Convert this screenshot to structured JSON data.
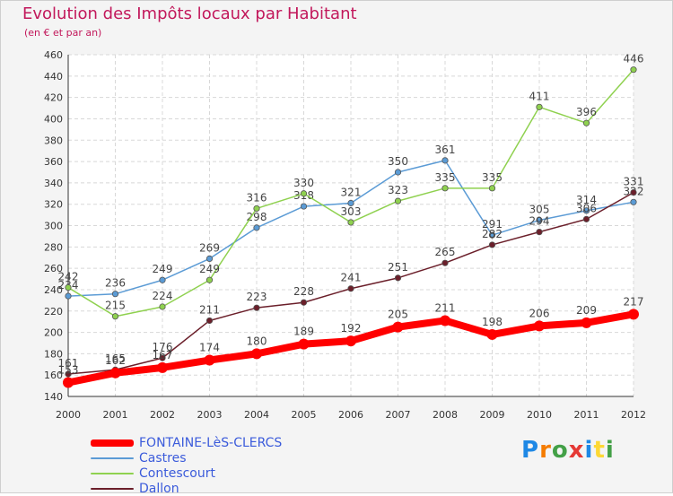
{
  "chart_data": {
    "type": "line",
    "title": "Evolution des Impôts locaux par Habitant",
    "subtitle": "(en € et par an)",
    "xlabel": "",
    "ylabel": "",
    "x": [
      "2000",
      "2001",
      "2002",
      "2003",
      "2004",
      "2005",
      "2006",
      "2007",
      "2008",
      "2009",
      "2010",
      "2011",
      "2012"
    ],
    "ylim": [
      140,
      460
    ],
    "yticks": [
      140,
      160,
      180,
      200,
      220,
      240,
      260,
      280,
      300,
      320,
      340,
      360,
      380,
      400,
      420,
      440,
      460
    ],
    "grid": true,
    "legend": "bottom-left",
    "series": [
      {
        "name": "FONTAINE-LèS-CLERCS",
        "color": "#ff0000",
        "values": [
          153,
          162,
          167,
          174,
          180,
          189,
          192,
          205,
          211,
          198,
          206,
          209,
          217
        ]
      },
      {
        "name": "Castres",
        "color": "#5b9bd5",
        "values": [
          234,
          236,
          249,
          269,
          298,
          318,
          321,
          350,
          361,
          291,
          305,
          314,
          322
        ]
      },
      {
        "name": "Contescourt",
        "color": "#8fd14f",
        "values": [
          242,
          215,
          224,
          249,
          316,
          330,
          303,
          323,
          335,
          335,
          411,
          396,
          446
        ]
      },
      {
        "name": "Dallon",
        "color": "#6b1f2a",
        "values": [
          161,
          165,
          176,
          211,
          223,
          228,
          241,
          251,
          265,
          282,
          294,
          306,
          331
        ]
      }
    ]
  },
  "legend_label_color": "#3b5bdb",
  "logo": {
    "text": "Proxiti",
    "letters": [
      "P",
      "r",
      "o",
      "x",
      "i",
      "t",
      "i"
    ],
    "colors": [
      "#1e88e5",
      "#f57c00",
      "#43a047",
      "#e53935",
      "#1e88e5",
      "#fdd835",
      "#43a047"
    ]
  }
}
